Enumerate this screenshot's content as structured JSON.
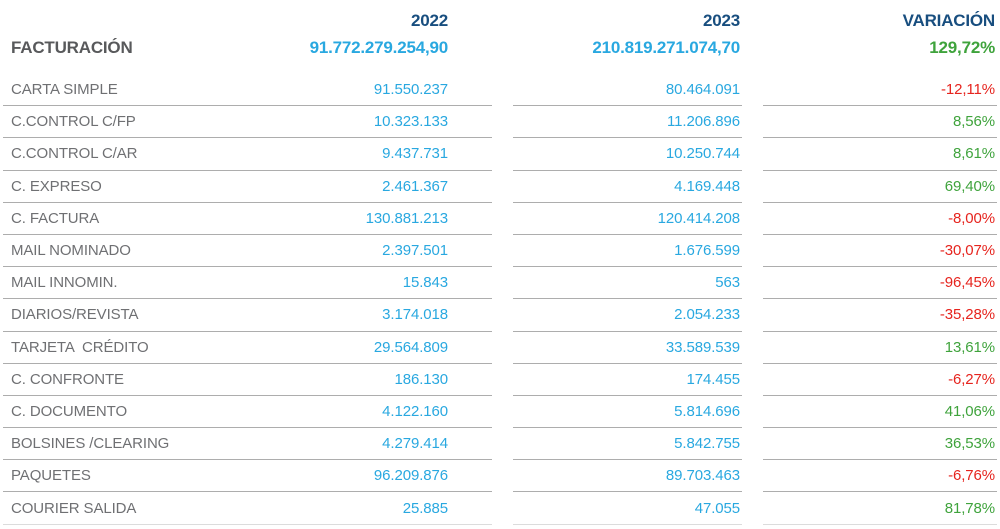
{
  "chart_data": {
    "type": "table",
    "title": "FACTURACIÓN",
    "columns": [
      "",
      "2022",
      "2023",
      "VARIACIÓN"
    ],
    "header": {
      "col_2022": "2022",
      "col_2023": "2023",
      "col_variation": "VARIACIÓN",
      "row_label": "FACTURACIÓN",
      "total_2022": "91.772.279.254,90",
      "total_2023": "210.819.271.074,70",
      "total_variation": "129,72%"
    },
    "rows": [
      {
        "label": "CARTA SIMPLE",
        "v2022": "91.550.237",
        "v2023": "80.464.091",
        "variation": "-12,11%"
      },
      {
        "label": "C.CONTROL C/FP",
        "v2022": "10.323.133",
        "v2023": "11.206.896",
        "variation": "8,56%"
      },
      {
        "label": "C.CONTROL C/AR",
        "v2022": "9.437.731",
        "v2023": "10.250.744",
        "variation": "8,61%"
      },
      {
        "label": "C. EXPRESO",
        "v2022": "2.461.367",
        "v2023": "4.169.448",
        "variation": "69,40%"
      },
      {
        "label": "C. FACTURA",
        "v2022": "130.881.213",
        "v2023": "120.414.208",
        "variation": "-8,00%"
      },
      {
        "label": "MAIL NOMINADO",
        "v2022": "2.397.501",
        "v2023": "1.676.599",
        "variation": "-30,07%"
      },
      {
        "label": "MAIL INNOMIN.",
        "v2022": "15.843",
        "v2023": "563",
        "variation": "-96,45%"
      },
      {
        "label": "DIARIOS/REVISTA",
        "v2022": "3.174.018",
        "v2023": "2.054.233",
        "variation": "-35,28%"
      },
      {
        "label": "TARJETA  CRÉDITO",
        "v2022": "29.564.809",
        "v2023": "33.589.539",
        "variation": "13,61%"
      },
      {
        "label": "C. CONFRONTE",
        "v2022": "186.130",
        "v2023": "174.455",
        "variation": "-6,27%"
      },
      {
        "label": "C. DOCUMENTO",
        "v2022": "4.122.160",
        "v2023": "5.814.696",
        "variation": "41,06%"
      },
      {
        "label": "BOLSINES /CLEARING",
        "v2022": "4.279.414",
        "v2023": "5.842.755",
        "variation": "36,53%"
      },
      {
        "label": "PAQUETES",
        "v2022": "96.209.876",
        "v2023": "89.703.463",
        "variation": "-6,76%"
      },
      {
        "label": "COURIER SALIDA",
        "v2022": "25.885",
        "v2023": "47.055",
        "variation": "81,78%"
      }
    ],
    "colors": {
      "header_navy": "#184E7F",
      "value_blue": "#29A8E0",
      "positive_green": "#3FA33C",
      "negative_red": "#E6241E",
      "label_gray": "#6F7073",
      "facturacion_gray": "#58595B",
      "row_line_gray": "#ADADAD"
    }
  }
}
